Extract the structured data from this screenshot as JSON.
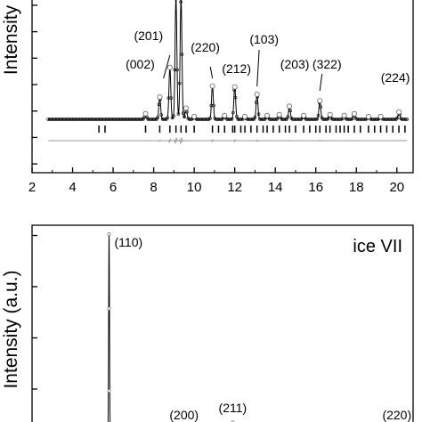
{
  "chart_data": [
    {
      "type": "line",
      "ylabel": "Intensity",
      "xlim": [
        2,
        20.8
      ],
      "x_ticks": [
        2,
        4,
        6,
        8,
        10,
        12,
        14,
        16,
        18,
        20
      ],
      "y_ticks": [
        0.05,
        0.2,
        0.35,
        0.5,
        0.65,
        0.8,
        0.95
      ],
      "ylim": [
        0,
        1
      ],
      "grid": false,
      "peaks": [
        {
          "x": 7.6,
          "y": 0.06,
          "label": ""
        },
        {
          "x": 8.3,
          "y": 0.24,
          "label": "(002)"
        },
        {
          "x": 8.8,
          "y": 0.56,
          "label": "(201)"
        },
        {
          "x": 9.1,
          "y": 1.3,
          "label": ""
        },
        {
          "x": 9.35,
          "y": 1.3,
          "label": ""
        },
        {
          "x": 9.6,
          "y": 0.12,
          "label": ""
        },
        {
          "x": 10.0,
          "y": 0.03,
          "label": ""
        },
        {
          "x": 10.9,
          "y": 0.36,
          "label": "(220)"
        },
        {
          "x": 11.5,
          "y": 0.04,
          "label": ""
        },
        {
          "x": 12.0,
          "y": 0.35,
          "label": "(212)"
        },
        {
          "x": 12.5,
          "y": 0.03,
          "label": ""
        },
        {
          "x": 13.1,
          "y": 0.27,
          "label": "(103)"
        },
        {
          "x": 13.6,
          "y": 0.04,
          "label": ""
        },
        {
          "x": 14.2,
          "y": 0.05,
          "label": ""
        },
        {
          "x": 14.7,
          "y": 0.14,
          "label": "(203)"
        },
        {
          "x": 15.4,
          "y": 0.04,
          "label": ""
        },
        {
          "x": 16.2,
          "y": 0.2,
          "label": "(322)"
        },
        {
          "x": 16.7,
          "y": 0.05,
          "label": ""
        },
        {
          "x": 17.4,
          "y": 0.04,
          "label": ""
        },
        {
          "x": 17.9,
          "y": 0.06,
          "label": ""
        },
        {
          "x": 18.6,
          "y": 0.03,
          "label": ""
        },
        {
          "x": 19.2,
          "y": 0.03,
          "label": ""
        },
        {
          "x": 20.1,
          "y": 0.08,
          "label": "(224)"
        }
      ],
      "reflection_ticks": [
        5.3,
        5.6,
        7.6,
        8.3,
        8.8,
        9.1,
        9.35,
        9.6,
        10.0,
        10.9,
        11.2,
        11.5,
        11.9,
        12.0,
        12.3,
        12.5,
        12.8,
        13.1,
        13.4,
        13.6,
        13.9,
        14.2,
        14.5,
        14.7,
        15.0,
        15.4,
        15.7,
        16.0,
        16.2,
        16.5,
        16.7,
        17.0,
        17.2,
        17.4,
        17.6,
        17.9,
        18.2,
        18.6,
        18.9,
        19.2,
        19.5,
        19.8,
        20.1,
        20.4
      ]
    },
    {
      "type": "line",
      "ylabel": "Intensity (a.u.)",
      "annotation": "ice VII",
      "xlim": [
        2,
        20.8
      ],
      "ylim": [
        0,
        1
      ],
      "y_ticks": [
        0.2,
        0.45,
        0.7,
        0.95
      ],
      "grid": false,
      "peaks": [
        {
          "x": 5.8,
          "y": 1.0,
          "label": "(110)"
        },
        {
          "x": 11.9,
          "y": 0.04,
          "label": "(211)"
        }
      ],
      "labels_only": [
        {
          "x": 9.5,
          "label": "(200)"
        },
        {
          "x": 20.0,
          "label": "(220)"
        }
      ]
    }
  ]
}
